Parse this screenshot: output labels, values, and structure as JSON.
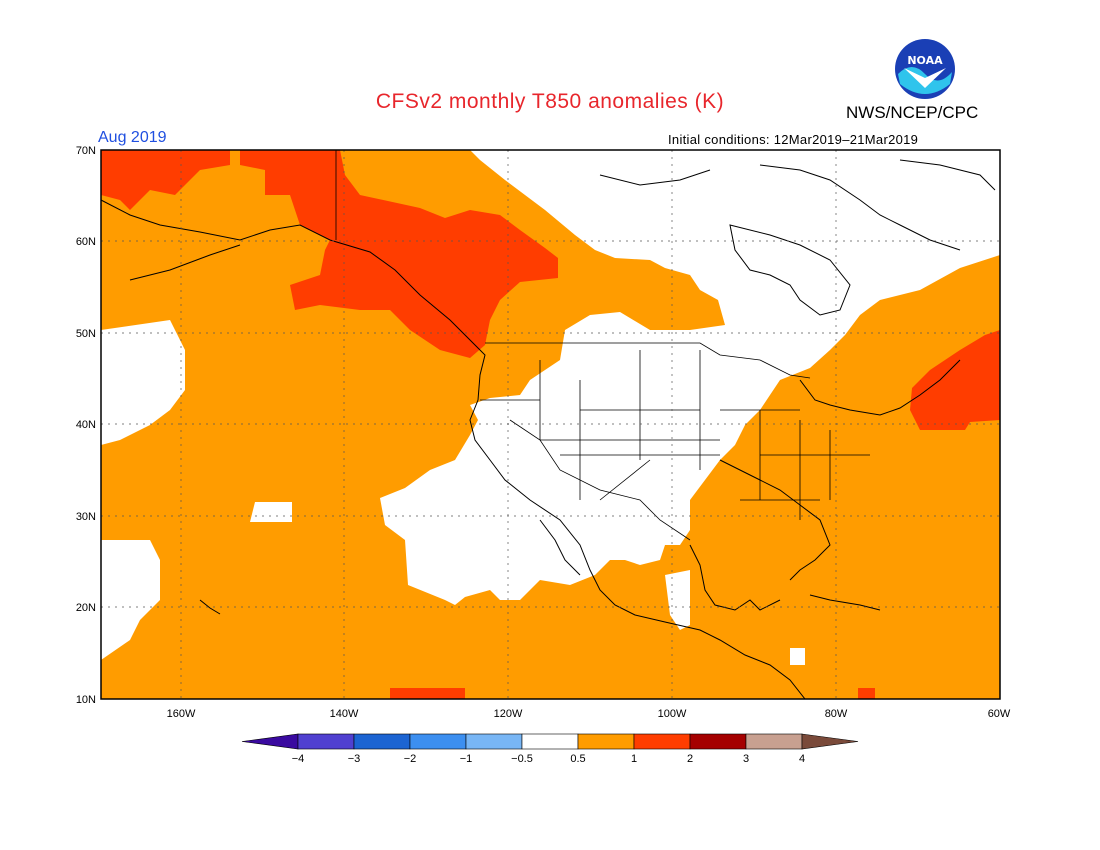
{
  "header": {
    "title": "CFSv2 monthly T850 anomalies (K)",
    "agency": "NWS/NCEP/CPC",
    "month": "Aug 2019",
    "initial_conditions": "Initial conditions: 12Mar2019–21Mar2019",
    "logo_text": "NOAA"
  },
  "map": {
    "lon_range": [
      -172,
      -60
    ],
    "lat_range": [
      10,
      70
    ],
    "lat_ticks": [
      "10N",
      "20N",
      "30N",
      "40N",
      "50N",
      "60N",
      "70N"
    ],
    "lon_ticks": [
      "160W",
      "140W",
      "120W",
      "100W",
      "80W",
      "60W"
    ],
    "background_category": "0.5 to 1"
  },
  "colorbar": {
    "labels": [
      "−4",
      "−3",
      "−2",
      "−1",
      "−0.5",
      "0.5",
      "1",
      "2",
      "3",
      "4"
    ],
    "colors": [
      "#3a0aa0",
      "#5040d0",
      "#1c64d2",
      "#3c8ff0",
      "#78b6f5",
      "#ffffff",
      "#ff9c00",
      "#ff3d00",
      "#a50000",
      "#c8a090",
      "#7a4a3a"
    ]
  },
  "colors": {
    "orange": "#ff9c00",
    "red": "#ff3d00",
    "darkred": "#a50000",
    "white": "#ffffff",
    "title": "#e8262c",
    "month": "#1f4fe0"
  }
}
